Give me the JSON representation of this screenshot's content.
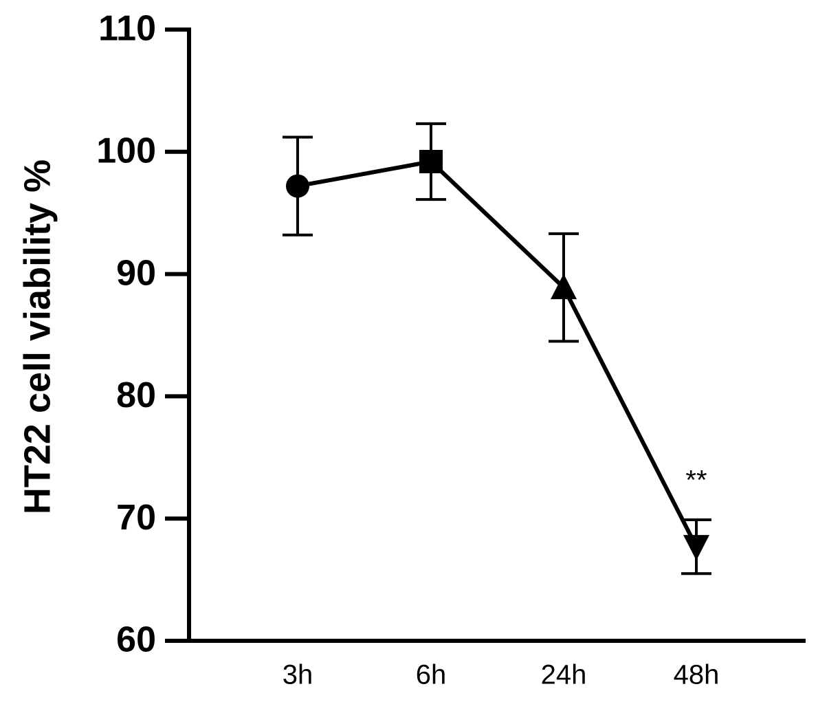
{
  "chart_data": {
    "type": "line",
    "ylabel": "HT22 cell viability %",
    "categories": [
      "3h",
      "6h",
      "24h",
      "48h"
    ],
    "values": [
      97.2,
      99.2,
      88.9,
      67.7
    ],
    "errors": [
      4.0,
      3.1,
      4.4,
      2.2
    ],
    "markers": [
      "circle",
      "square",
      "triangle-up",
      "triangle-down"
    ],
    "color": "#000000",
    "ylim": [
      60,
      110
    ],
    "yticks": [
      60,
      70,
      80,
      90,
      100,
      110
    ],
    "annotations": [
      {
        "text": "**",
        "index": 3
      }
    ]
  }
}
